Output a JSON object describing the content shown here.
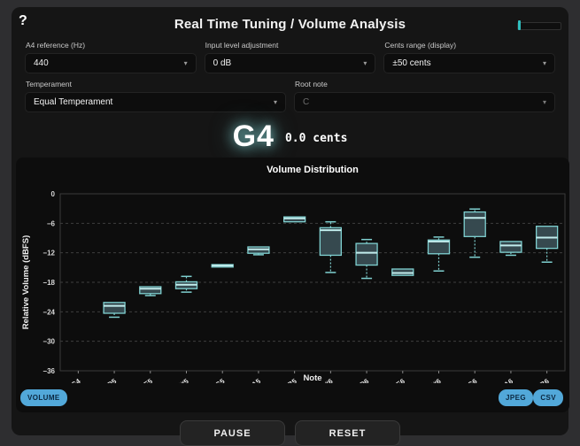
{
  "header": {
    "help": "?",
    "title": "Real Time Tuning / Volume Analysis"
  },
  "controls": {
    "a4": {
      "label": "A4 reference (Hz)",
      "value": "440"
    },
    "input_level": {
      "label": "Input level adjustment",
      "value": "0 dB"
    },
    "cents_range": {
      "label": "Cents range (display)",
      "value": "±50 cents"
    },
    "temperament": {
      "label": "Temperament",
      "value": "Equal Temperament"
    },
    "root_note": {
      "label": "Root note",
      "value": "C",
      "disabled": true
    }
  },
  "note_display": {
    "note": "G4",
    "cents": "0.0 cents"
  },
  "chart_buttons": {
    "volume": "VOLUME",
    "jpeg": "JPEG",
    "csv": "CSV"
  },
  "transport": {
    "pause": "PAUSE",
    "reset": "RESET"
  },
  "colors": {
    "accent_teal": "#7fd0d0",
    "box_fill": "#36494f",
    "median": "#c2eded",
    "glow": "#8de0e0",
    "button_blue": "#52a8d9",
    "grid": "#3f3f3f",
    "panel": "#151515",
    "chart_bg": "#0d0d0d"
  },
  "chart_data": {
    "type": "boxplot",
    "title": "Volume Distribution",
    "xlabel": "Note",
    "ylabel": "Relative Volume (dBFS)",
    "ylim": [
      -36,
      0
    ],
    "yticks": [
      0,
      -6,
      -12,
      -18,
      -24,
      -30,
      -36
    ],
    "grid": "dashed-horizontal",
    "categories": [
      "G4",
      "D5",
      "E5",
      "F#5",
      "G5",
      "A5",
      "B5",
      "C#6",
      "D6",
      "E6",
      "F#6",
      "G6",
      "A6",
      "B6"
    ],
    "series": [
      {
        "note": "G4",
        "stats": null
      },
      {
        "note": "D5",
        "stats": {
          "low": -25.1,
          "q1": -24.3,
          "median": -22.8,
          "q3": -22.1,
          "high": -22.0
        }
      },
      {
        "note": "E5",
        "stats": {
          "low": -20.7,
          "q1": -20.3,
          "median": -19.3,
          "q3": -18.9,
          "high": -18.8
        }
      },
      {
        "note": "F#5",
        "stats": {
          "low": -20.0,
          "q1": -19.3,
          "median": -18.5,
          "q3": -17.9,
          "high": -16.8
        }
      },
      {
        "note": "G5",
        "stats": {
          "low": -15.0,
          "q1": -14.9,
          "median": -14.6,
          "q3": -14.4,
          "high": -14.3
        }
      },
      {
        "note": "A5",
        "stats": {
          "low": -12.4,
          "q1": -12.1,
          "median": -11.3,
          "q3": -10.8,
          "high": -10.8
        }
      },
      {
        "note": "B5",
        "stats": {
          "low": -5.8,
          "q1": -5.7,
          "median": -5.0,
          "q3": -4.7,
          "high": -4.6
        }
      },
      {
        "note": "C#6",
        "stats": {
          "low": -16.0,
          "q1": -12.5,
          "median": -7.4,
          "q3": -6.9,
          "high": -5.7
        }
      },
      {
        "note": "D6",
        "stats": {
          "low": -17.2,
          "q1": -14.5,
          "median": -12.0,
          "q3": -10.1,
          "high": -9.3
        }
      },
      {
        "note": "E6",
        "stats": {
          "low": -16.8,
          "q1": -16.6,
          "median": -16.1,
          "q3": -15.3,
          "high": -15.2
        }
      },
      {
        "note": "F#6",
        "stats": {
          "low": -15.7,
          "q1": -12.2,
          "median": -9.7,
          "q3": -9.4,
          "high": -8.8
        }
      },
      {
        "note": "G6",
        "stats": {
          "low": -12.9,
          "q1": -8.7,
          "median": -4.9,
          "q3": -3.7,
          "high": -3.1
        }
      },
      {
        "note": "A6",
        "stats": {
          "low": -12.5,
          "q1": -11.9,
          "median": -10.5,
          "q3": -9.7,
          "high": -9.6
        }
      },
      {
        "note": "B6",
        "stats": {
          "low": -13.9,
          "q1": -11.1,
          "median": -8.9,
          "q3": -6.6,
          "high": -6.4
        }
      }
    ]
  }
}
